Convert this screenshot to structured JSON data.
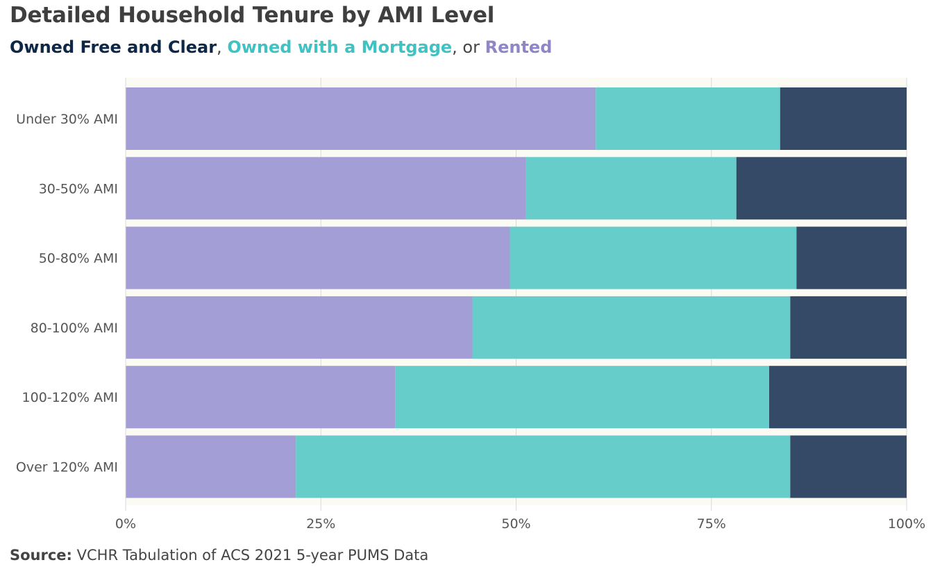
{
  "title": "Detailed Household  Tenure by AMI Level",
  "subtitle": {
    "owned_free": "Owned Free and Clear",
    "sep1": ", ",
    "mortgage": "Owned with a Mortgage",
    "sep2": ", or ",
    "rented": "Rented"
  },
  "source": {
    "label": "Source:",
    "text": " VCHR Tabulation of ACS 2021 5-year PUMS Data"
  },
  "colors": {
    "rented": "#a39fd6",
    "mortgage": "#66cdca",
    "owned_free": "#344a66",
    "plot_bg": "#fbfbf4",
    "grid": "#d9d9d9"
  },
  "chart_data": {
    "type": "bar",
    "orientation": "horizontal",
    "stacked": true,
    "categories": [
      "Under 30% AMI",
      "30-50% AMI",
      "50-80% AMI",
      "80-100% AMI",
      "100-120% AMI",
      "Over 120% AMI"
    ],
    "series": [
      {
        "name": "Rented",
        "values": [
          60.2,
          51.2,
          49.2,
          44.4,
          34.5,
          21.8
        ]
      },
      {
        "name": "Owned with a Mortgage",
        "values": [
          23.6,
          27.0,
          36.7,
          40.7,
          47.9,
          63.3
        ]
      },
      {
        "name": "Owned Free and Clear",
        "values": [
          16.2,
          21.8,
          14.1,
          14.9,
          17.6,
          14.9
        ]
      }
    ],
    "x_ticks": [
      "0%",
      "25%",
      "50%",
      "75%",
      "100%"
    ],
    "xlim": [
      0,
      100
    ],
    "grid": true,
    "legend": "subtitle"
  }
}
